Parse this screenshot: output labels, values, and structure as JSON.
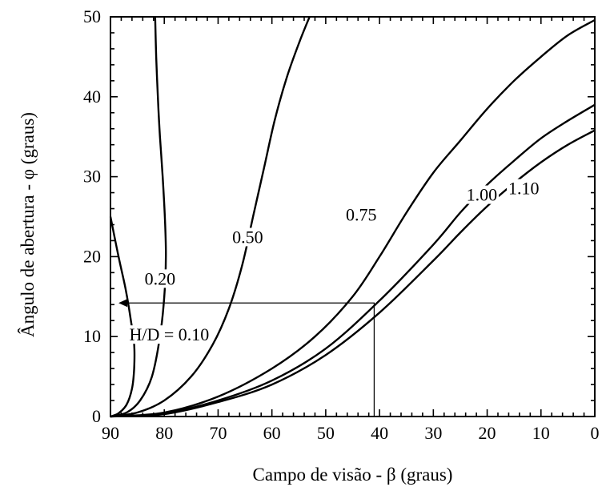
{
  "chart_data": {
    "type": "line",
    "xlabel": "Campo de visão - β (graus)",
    "ylabel": "Ângulo de abertura - φ (graus)",
    "xlim": [
      90,
      0
    ],
    "ylim": [
      0,
      50
    ],
    "x_ticks": [
      90,
      80,
      70,
      60,
      50,
      40,
      30,
      20,
      10,
      0
    ],
    "y_ticks": [
      0,
      10,
      20,
      30,
      40,
      50
    ],
    "x_tick_labels": [
      "90",
      "80",
      "70",
      "60",
      "50",
      "40",
      "30",
      "20",
      "10",
      "0"
    ],
    "y_tick_labels": [
      "0",
      "10",
      "20",
      "30",
      "40",
      "50"
    ],
    "grid": false,
    "series": [
      {
        "name": "0.10",
        "label": "H/D = 0.10",
        "points": [
          [
            90,
            0
          ],
          [
            88.5,
            0.4
          ],
          [
            87,
            1.5
          ],
          [
            86,
            3.5
          ],
          [
            85.6,
            6
          ],
          [
            85.6,
            9
          ],
          [
            86.2,
            12
          ],
          [
            87.2,
            16
          ],
          [
            88.5,
            20
          ],
          [
            90,
            25
          ]
        ]
      },
      {
        "name": "0.20",
        "label": "0.20",
        "points": [
          [
            90,
            0
          ],
          [
            87,
            0.5
          ],
          [
            84.5,
            2
          ],
          [
            82.3,
            5
          ],
          [
            80.8,
            10
          ],
          [
            80,
            15
          ],
          [
            79.7,
            20
          ],
          [
            79.9,
            25
          ],
          [
            80.3,
            30
          ],
          [
            80.8,
            35
          ],
          [
            81.2,
            40
          ],
          [
            81.5,
            45
          ],
          [
            81.7,
            50
          ]
        ]
      },
      {
        "name": "0.50",
        "label": "0.50",
        "points": [
          [
            90,
            0
          ],
          [
            85,
            0.5
          ],
          [
            80,
            2
          ],
          [
            75,
            5
          ],
          [
            71,
            9
          ],
          [
            68,
            13.5
          ],
          [
            65.5,
            19
          ],
          [
            63.5,
            25
          ],
          [
            61.5,
            31
          ],
          [
            59.5,
            37
          ],
          [
            57.2,
            42.5
          ],
          [
            54.8,
            47
          ],
          [
            53,
            50
          ]
        ]
      },
      {
        "name": "0.75",
        "label": "0.75",
        "points": [
          [
            90,
            0
          ],
          [
            80,
            0.5
          ],
          [
            70,
            2.5
          ],
          [
            60,
            6
          ],
          [
            52,
            10
          ],
          [
            45,
            15
          ],
          [
            40,
            20
          ],
          [
            35,
            25.5
          ],
          [
            30,
            30.5
          ],
          [
            25,
            34.5
          ],
          [
            20,
            38.5
          ],
          [
            15,
            42
          ],
          [
            10,
            45
          ],
          [
            5,
            47.7
          ],
          [
            0,
            49.6
          ]
        ]
      },
      {
        "name": "1.00",
        "label": "1.00",
        "points": [
          [
            90,
            0
          ],
          [
            80,
            0.4
          ],
          [
            70,
            2
          ],
          [
            60,
            4.5
          ],
          [
            50,
            8.5
          ],
          [
            40,
            14.5
          ],
          [
            30,
            21.5
          ],
          [
            25,
            25.5
          ],
          [
            20,
            29
          ],
          [
            15,
            32
          ],
          [
            10,
            34.8
          ],
          [
            5,
            37
          ],
          [
            0,
            39
          ]
        ]
      },
      {
        "name": "1.10",
        "label": "1.10",
        "points": [
          [
            90,
            0
          ],
          [
            80,
            0.3
          ],
          [
            70,
            1.8
          ],
          [
            60,
            4
          ],
          [
            50,
            7.7
          ],
          [
            40,
            13
          ],
          [
            30,
            19.5
          ],
          [
            25,
            23
          ],
          [
            20,
            26.3
          ],
          [
            15,
            29.2
          ],
          [
            10,
            31.8
          ],
          [
            5,
            34
          ],
          [
            0,
            35.8
          ]
        ]
      }
    ],
    "annotations": {
      "guide_x": 41,
      "guide_y": 14.2,
      "arrow_to_x": 88.5
    }
  }
}
